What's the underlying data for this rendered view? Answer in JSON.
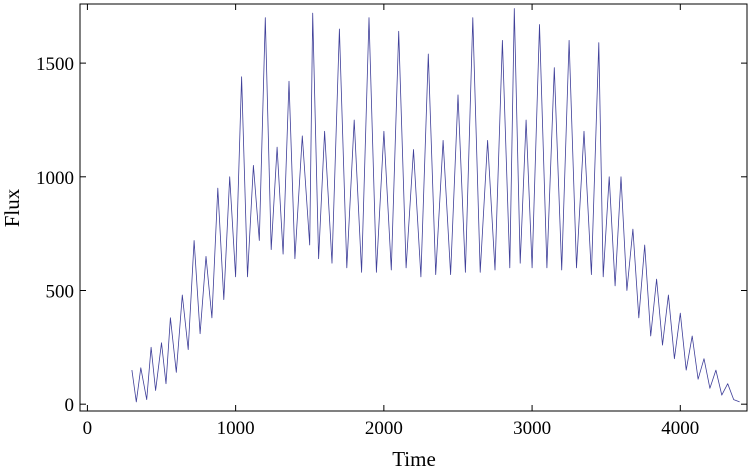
{
  "chart_data": {
    "type": "line",
    "title": "",
    "xlabel": "Time",
    "ylabel": "Flux",
    "xlim": [
      -50,
      4450
    ],
    "ylim": [
      -30,
      1760
    ],
    "x_ticks": [
      0,
      1000,
      2000,
      3000,
      4000
    ],
    "y_ticks": [
      0,
      500,
      1000,
      1500
    ],
    "grid": false,
    "frame": "full box",
    "series": [
      {
        "color": "#3f3f99",
        "sampling": "coarse envelope of a dense noisy time series; values estimated from the plot (upper/lower envelope points)",
        "x": [
          300,
          330,
          360,
          400,
          430,
          460,
          500,
          530,
          560,
          600,
          640,
          680,
          720,
          760,
          800,
          840,
          880,
          920,
          960,
          1000,
          1040,
          1080,
          1120,
          1160,
          1200,
          1240,
          1280,
          1320,
          1360,
          1400,
          1450,
          1500,
          1520,
          1560,
          1600,
          1650,
          1700,
          1750,
          1800,
          1850,
          1900,
          1950,
          2000,
          2050,
          2100,
          2150,
          2200,
          2250,
          2300,
          2350,
          2400,
          2450,
          2500,
          2550,
          2600,
          2650,
          2700,
          2750,
          2800,
          2850,
          2880,
          2920,
          2960,
          3000,
          3050,
          3100,
          3150,
          3200,
          3250,
          3300,
          3350,
          3400,
          3450,
          3480,
          3520,
          3560,
          3600,
          3640,
          3680,
          3720,
          3760,
          3800,
          3840,
          3880,
          3920,
          3960,
          4000,
          4040,
          4080,
          4120,
          4160,
          4200,
          4240,
          4280,
          4320,
          4360,
          4400
        ],
        "values": [
          150,
          10,
          160,
          20,
          250,
          60,
          270,
          90,
          380,
          140,
          480,
          240,
          720,
          310,
          650,
          380,
          950,
          460,
          1000,
          560,
          1440,
          560,
          1050,
          720,
          1700,
          680,
          1130,
          660,
          1420,
          640,
          1180,
          700,
          1720,
          640,
          1200,
          620,
          1650,
          600,
          1250,
          580,
          1700,
          580,
          1200,
          590,
          1640,
          600,
          1120,
          560,
          1540,
          570,
          1160,
          570,
          1360,
          580,
          1700,
          580,
          1160,
          590,
          1600,
          600,
          1740,
          620,
          1250,
          600,
          1670,
          600,
          1480,
          590,
          1600,
          600,
          1200,
          570,
          1590,
          560,
          1000,
          520,
          1000,
          500,
          770,
          380,
          700,
          300,
          550,
          260,
          480,
          200,
          400,
          150,
          300,
          110,
          200,
          70,
          150,
          40,
          90,
          20,
          10
        ]
      }
    ]
  }
}
